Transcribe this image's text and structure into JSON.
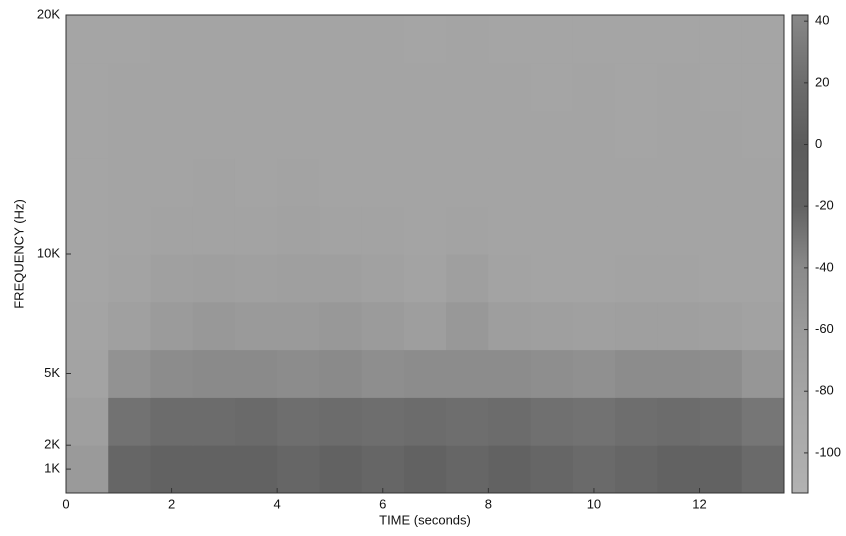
{
  "chart_data": {
    "type": "spectrogram",
    "xlabel": "TIME (seconds)",
    "ylabel": "FREQUENCY (Hz)",
    "xlim": [
      0,
      13.6
    ],
    "xticks": [
      0,
      2,
      4,
      6,
      8,
      10,
      12
    ],
    "ylim": [
      0,
      20000
    ],
    "yticks": [
      {
        "value": 1000,
        "label": "1K"
      },
      {
        "value": 2000,
        "label": "2K"
      },
      {
        "value": 5000,
        "label": "5K"
      },
      {
        "value": 10000,
        "label": "10K"
      },
      {
        "value": 20000,
        "label": "20K"
      }
    ],
    "clim": [
      -113,
      42
    ],
    "cticks": [
      40,
      20,
      0,
      -20,
      -40,
      -60,
      -80,
      -100
    ],
    "colormap": [
      {
        "value": -113,
        "color": "#b2b2b2"
      },
      {
        "value": -80,
        "color": "#a4a4a4"
      },
      {
        "value": -60,
        "color": "#9a9a9a"
      },
      {
        "value": -40,
        "color": "#8a8a8a"
      },
      {
        "value": -20,
        "color": "#626262"
      },
      {
        "value": 0,
        "color": "#5c5c5c"
      },
      {
        "value": 20,
        "color": "#6c6c6c"
      },
      {
        "value": 42,
        "color": "#888888"
      }
    ],
    "x": [
      0,
      0.8,
      1.6,
      2.4,
      3.2,
      4.0,
      4.8,
      5.6,
      6.4,
      7.2,
      8.0,
      8.8,
      9.6,
      10.4,
      11.2,
      12.0,
      12.8,
      13.6
    ],
    "y": [
      0,
      2000,
      4000,
      6000,
      8000,
      10000,
      12000,
      14000,
      16000,
      18000,
      20000
    ],
    "values": [
      [
        -60,
        -22,
        -20,
        -20,
        -20,
        -22,
        -20,
        -22,
        -20,
        -22,
        -20,
        -22,
        -24,
        -22,
        -20,
        -20,
        -24
      ],
      [
        -70,
        -28,
        -25,
        -25,
        -24,
        -26,
        -25,
        -26,
        -25,
        -26,
        -25,
        -27,
        -28,
        -26,
        -25,
        -26,
        -30
      ],
      [
        -78,
        -50,
        -42,
        -40,
        -40,
        -42,
        -40,
        -45,
        -42,
        -42,
        -42,
        -45,
        -48,
        -42,
        -42,
        -44,
        -55
      ],
      [
        -80,
        -72,
        -62,
        -58,
        -60,
        -60,
        -58,
        -62,
        -68,
        -58,
        -68,
        -70,
        -72,
        -70,
        -70,
        -72,
        -75
      ],
      [
        -82,
        -78,
        -72,
        -70,
        -72,
        -70,
        -70,
        -74,
        -78,
        -70,
        -78,
        -80,
        -80,
        -78,
        -78,
        -80,
        -80
      ],
      [
        -82,
        -80,
        -78,
        -78,
        -78,
        -76,
        -78,
        -78,
        -80,
        -78,
        -80,
        -80,
        -80,
        -80,
        -80,
        -80,
        -80
      ],
      [
        -82,
        -80,
        -79,
        -78,
        -79,
        -78,
        -79,
        -79,
        -80,
        -79,
        -80,
        -81,
        -80,
        -81,
        -80,
        -81,
        -81
      ],
      [
        -82,
        -81,
        -80,
        -79,
        -80,
        -79,
        -80,
        -80,
        -81,
        -80,
        -81,
        -81,
        -81,
        -82,
        -81,
        -81,
        -82
      ],
      [
        -83,
        -81,
        -80,
        -80,
        -80,
        -80,
        -80,
        -81,
        -81,
        -80,
        -81,
        -82,
        -81,
        -82,
        -81,
        -82,
        -82
      ],
      [
        -83,
        -82,
        -81,
        -80,
        -81,
        -80,
        -81,
        -81,
        -82,
        -81,
        -82,
        -82,
        -82,
        -82,
        -82,
        -82,
        -83
      ]
    ]
  }
}
